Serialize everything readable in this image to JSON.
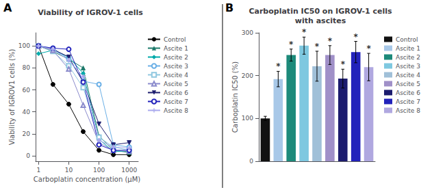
{
  "chart_data": [
    {
      "type": "line",
      "title": "Viability of IGROV-1 cells",
      "annotations": [
        "A"
      ],
      "xlabel": "Carboplatin concentration (μM)",
      "ylabel": "Viability of IGROV1 cells (%)",
      "x": [
        1,
        3,
        10,
        30,
        100,
        300,
        1000
      ],
      "log": "x",
      "xlim": [
        0.8,
        2000
      ],
      "xticks": [
        1,
        10,
        100,
        1000
      ],
      "ylim": [
        -5,
        112
      ],
      "yticks": [
        0,
        20,
        40,
        60,
        80,
        100
      ],
      "grid": false,
      "legend": "right",
      "series": [
        {
          "name": "Control",
          "color": "#000000",
          "marker": "circle",
          "values": [
            100,
            65,
            47,
            22,
            5,
            1,
            1
          ]
        },
        {
          "name": "Ascite 1",
          "color": "#1D7A6B",
          "marker": "triangle",
          "values": [
            100,
            95,
            88,
            80,
            18,
            5,
            3
          ]
        },
        {
          "name": "Ascite 2",
          "color": "#00AAAA",
          "marker": "diamond",
          "values": [
            93,
            96,
            90,
            75,
            15,
            4,
            4
          ]
        },
        {
          "name": "Ascite 3",
          "color": "#6AAFE6",
          "marker": "circle-open",
          "values": [
            100,
            98,
            88,
            68,
            65,
            10,
            8
          ]
        },
        {
          "name": "Ascite 4",
          "color": "#90C8E0",
          "marker": "square-open",
          "values": [
            100,
            95,
            82,
            62,
            17,
            8,
            5
          ]
        },
        {
          "name": "Ascite 5",
          "color": "#8B8BCC",
          "marker": "triangle-open",
          "values": [
            100,
            96,
            79,
            46,
            12,
            5,
            4
          ]
        },
        {
          "name": "Ascite 6",
          "color": "#1C1C6E",
          "marker": "triangle-down",
          "values": [
            100,
            97,
            90,
            67,
            29,
            10,
            12
          ]
        },
        {
          "name": "Ascite 7",
          "color": "#2222BB",
          "marker": "circle-open",
          "values": [
            100,
            98,
            97,
            67,
            10,
            5,
            5
          ]
        },
        {
          "name": "Ascite 8",
          "color": "#AAAAEE",
          "marker": "plus",
          "values": [
            100,
            97,
            87,
            72,
            14,
            8,
            7
          ]
        }
      ]
    },
    {
      "type": "bar",
      "title": "Carboplatin IC50 on IGROV-1 cells\nwith ascites",
      "annotations": [
        "B"
      ],
      "ylabel": "Carboplatin IC50 (%)",
      "categories": [
        "Control",
        "Ascite 1",
        "Ascite 2",
        "Ascite 3",
        "Ascite 4",
        "Ascite 5",
        "Ascite 6",
        "Ascite 7",
        "Ascite 8"
      ],
      "values": [
        100,
        192,
        248,
        270,
        222,
        248,
        193,
        255,
        220
      ],
      "errors": [
        5,
        18,
        14,
        20,
        35,
        22,
        22,
        25,
        32
      ],
      "colors": [
        "#111111",
        "#A8C8E8",
        "#1D8A7A",
        "#7EC8E0",
        "#A0C0D8",
        "#A090C8",
        "#1C1C6E",
        "#2222BB",
        "#B0A8E0"
      ],
      "significance": [
        null,
        "*",
        "*",
        "*",
        "*",
        "*",
        "*",
        "*",
        "*"
      ],
      "ylim": [
        0,
        300
      ],
      "yticks": [
        0,
        100,
        200,
        300
      ],
      "grid": false,
      "legend": "right",
      "tick_labels": "y"
    }
  ]
}
